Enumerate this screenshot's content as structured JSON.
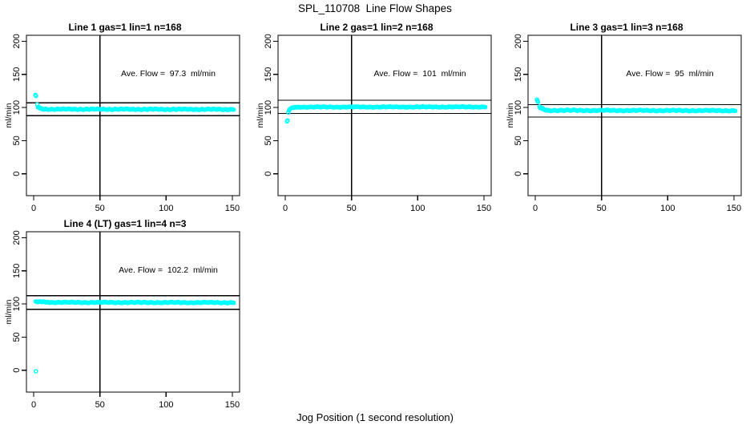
{
  "main_title": "SPL_110708  Line Flow Shapes",
  "outer_xlabel": "Jog Position (1 second resolution)",
  "colors": {
    "background": "#ffffff",
    "axis": "#000000",
    "points": "#00ffff"
  },
  "chart_data": [
    {
      "type": "scatter",
      "title": "Line 1 gas=1 lin=1 n=168",
      "annotation": "Ave. Flow =  97.3  ml/min",
      "ave_flow_ml_min": 97.3,
      "n": 168,
      "ylabel": "ml/min",
      "xlim": [
        -5.5,
        155.5
      ],
      "ylim": [
        -33,
        209
      ],
      "x_ticks": [
        0,
        50,
        100,
        150
      ],
      "y_ticks": [
        0,
        50,
        100,
        150,
        200
      ],
      "vline_x": 50,
      "hlines": [
        107.0,
        87.6
      ],
      "marker": "open-circle",
      "color": "#00ffff",
      "anomaly_points": [
        [
          1.3,
          119
        ],
        [
          1.7,
          117.5
        ],
        [
          2.6,
          104.5
        ]
      ],
      "band_segments": [
        {
          "x0": 3.2,
          "x1": 7,
          "y0": 100.5,
          "y1": 97.6
        },
        {
          "x0": 7,
          "x1": 151,
          "y0": 97.5,
          "y1": 97.2
        }
      ],
      "jitter": 0.8
    },
    {
      "type": "scatter",
      "title": "Line 2 gas=1 lin=2 n=168",
      "annotation": "Ave. Flow =  101  ml/min",
      "ave_flow_ml_min": 101,
      "n": 168,
      "ylabel": "ml/min",
      "xlim": [
        -5.5,
        155.5
      ],
      "ylim": [
        -33,
        209
      ],
      "x_ticks": [
        0,
        50,
        100,
        150
      ],
      "y_ticks": [
        0,
        50,
        100,
        150,
        200
      ],
      "vline_x": 50,
      "hlines": [
        111.1,
        90.9
      ],
      "marker": "open-circle",
      "color": "#00ffff",
      "anomaly_points": [
        [
          1.3,
          79
        ],
        [
          1.7,
          80.5
        ],
        [
          2.3,
          92.5
        ],
        [
          2.8,
          95.5
        ],
        [
          3.4,
          97.5
        ],
        [
          4.0,
          98.5
        ],
        [
          4.6,
          99.2
        ],
        [
          5.2,
          99.8
        ]
      ],
      "band_segments": [
        {
          "x0": 5.5,
          "x1": 10,
          "y0": 99.9,
          "y1": 100.7
        },
        {
          "x0": 10,
          "x1": 151,
          "y0": 100.7,
          "y1": 100.9
        }
      ],
      "jitter": 0.6
    },
    {
      "type": "scatter",
      "title": "Line 3 gas=1 lin=3 n=168",
      "annotation": "Ave. Flow =  95  ml/min",
      "ave_flow_ml_min": 95,
      "n": 168,
      "ylabel": "ml/min",
      "xlim": [
        -5.5,
        155.5
      ],
      "ylim": [
        -33,
        209
      ],
      "x_ticks": [
        0,
        50,
        100,
        150
      ],
      "y_ticks": [
        0,
        50,
        100,
        150,
        200
      ],
      "vline_x": 50,
      "hlines": [
        104.5,
        85.5
      ],
      "marker": "open-circle",
      "color": "#00ffff",
      "anomaly_points": [
        [
          1.2,
          112
        ],
        [
          1.6,
          110
        ],
        [
          2.0,
          108.5
        ],
        [
          3.2,
          101.5
        ]
      ],
      "band_segments": [
        {
          "x0": 3.5,
          "x1": 8,
          "y0": 100.0,
          "y1": 96.0
        },
        {
          "x0": 8,
          "x1": 151,
          "y0": 95.7,
          "y1": 95.3
        }
      ],
      "jitter": 0.8
    },
    {
      "type": "scatter",
      "title": "Line 4 (LT) gas=1 lin=4 n=3",
      "annotation": "Ave. Flow =  102.2  ml/min",
      "ave_flow_ml_min": 102.2,
      "n": 3,
      "ylabel": "ml/min",
      "xlim": [
        -5.5,
        155.5
      ],
      "ylim": [
        -33,
        209
      ],
      "x_ticks": [
        0,
        50,
        100,
        150
      ],
      "y_ticks": [
        0,
        50,
        100,
        150,
        200
      ],
      "vline_x": 50,
      "hlines": [
        112.4,
        92.0
      ],
      "marker": "open-circle",
      "color": "#00ffff",
      "anomaly_points": [
        [
          1.6,
          -1.5
        ]
      ],
      "band_segments": [
        {
          "x0": 1.5,
          "x1": 12,
          "y0": 103.6,
          "y1": 102.6
        },
        {
          "x0": 12,
          "x1": 151,
          "y0": 102.4,
          "y1": 102.1
        }
      ],
      "jitter": 0.7
    }
  ]
}
